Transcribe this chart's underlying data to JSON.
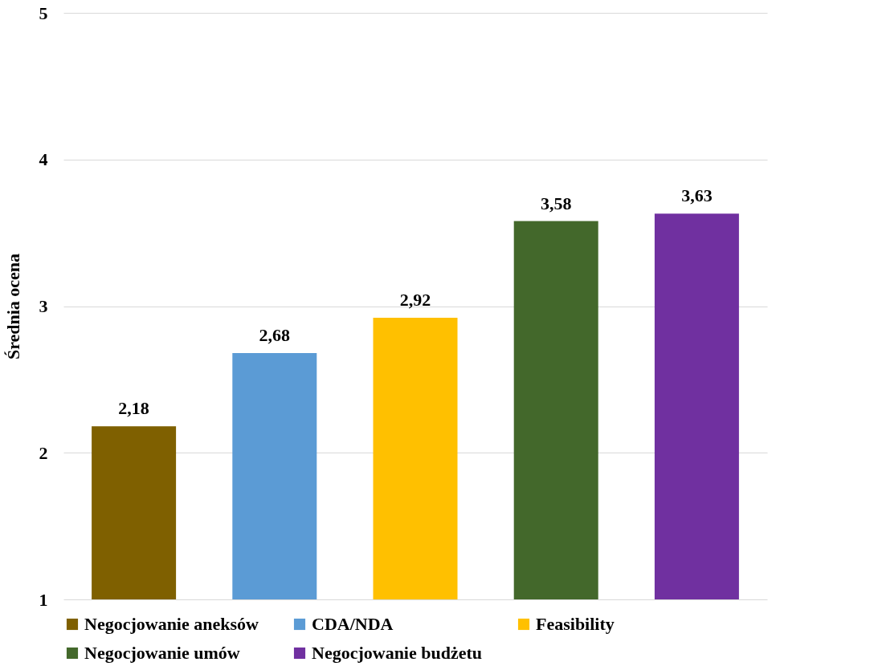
{
  "chart_data": {
    "type": "bar",
    "ylabel": "Średnia ocena",
    "categories": [
      null,
      null,
      null,
      null,
      null
    ],
    "series": [
      {
        "name": "Negocjowanie aneksów",
        "color": "#7f6000",
        "values": [
          2.18,
          null,
          null,
          null,
          null
        ]
      },
      {
        "name": "CDA/NDA",
        "color": "#5b9bd5",
        "values": [
          null,
          2.68,
          null,
          null,
          null
        ]
      },
      {
        "name": "Feasibility",
        "color": "#ffc000",
        "values": [
          null,
          null,
          2.92,
          null,
          null
        ]
      },
      {
        "name": "Negocjowanie umów",
        "color": "#43682b",
        "values": [
          null,
          null,
          null,
          3.58,
          null
        ]
      },
      {
        "name": "Negocjowanie budżetu",
        "color": "#7030a0",
        "values": [
          null,
          null,
          null,
          null,
          3.63
        ]
      }
    ],
    "value_labels": [
      "2,18",
      "2,68",
      "2,92",
      "3,58",
      "3,63"
    ],
    "ylim": [
      1,
      5
    ],
    "yticks": [
      1,
      2,
      3,
      4,
      5
    ],
    "grid": "y",
    "legend": "bottom"
  }
}
